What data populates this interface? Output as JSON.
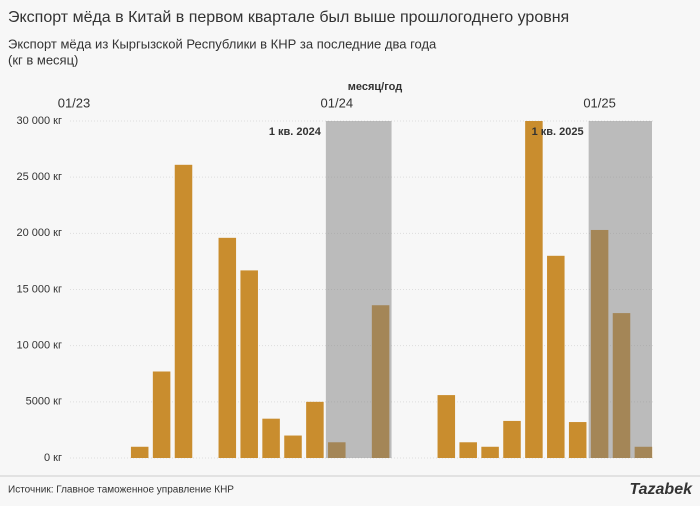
{
  "chart_data": {
    "type": "bar",
    "title": "Экспорт мёда в Китай в первом квартале был выше прошлогоднего уровня",
    "subtitle": [
      "Экспорт мёда из Кыргызской Республики в КНР за последние два года",
      "(кг в месяц)"
    ],
    "x_label": "месяц/год",
    "categories": [
      "01/23",
      null,
      null,
      null,
      null,
      null,
      null,
      null,
      null,
      null,
      null,
      null,
      "01/24",
      null,
      null,
      null,
      null,
      null,
      null,
      null,
      null,
      null,
      null,
      null,
      "01/25",
      null,
      null
    ],
    "values": [
      null,
      null,
      null,
      1000,
      7700,
      26100,
      null,
      19600,
      16700,
      3500,
      2000,
      5000,
      1400,
      null,
      13600,
      null,
      null,
      5600,
      1400,
      1000,
      3300,
      30000,
      18000,
      3200,
      20300,
      12900,
      1000
    ],
    "color": "#c98d2e",
    "highlights": [
      {
        "label": "1 кв. 2024",
        "start": 12,
        "end": 14
      },
      {
        "label": "1 кв. 2025",
        "start": 24,
        "end": 26
      }
    ],
    "highlight_color": "#808080",
    "ylim": [
      0,
      30000
    ],
    "yticks": [
      {
        "value": 0,
        "label": "0 кг"
      },
      {
        "value": 5000,
        "label": "5000 кг"
      },
      {
        "value": 10000,
        "label": "10 000 кг"
      },
      {
        "value": 15000,
        "label": "15 000 кг"
      },
      {
        "value": 20000,
        "label": "20 000 кг"
      },
      {
        "value": 25000,
        "label": "25 000 кг"
      },
      {
        "value": 30000,
        "label": "30 000 кг"
      }
    ],
    "grid": true,
    "source": "Источник: Главное таможенное управление КНР",
    "logo": "Tazabek"
  }
}
